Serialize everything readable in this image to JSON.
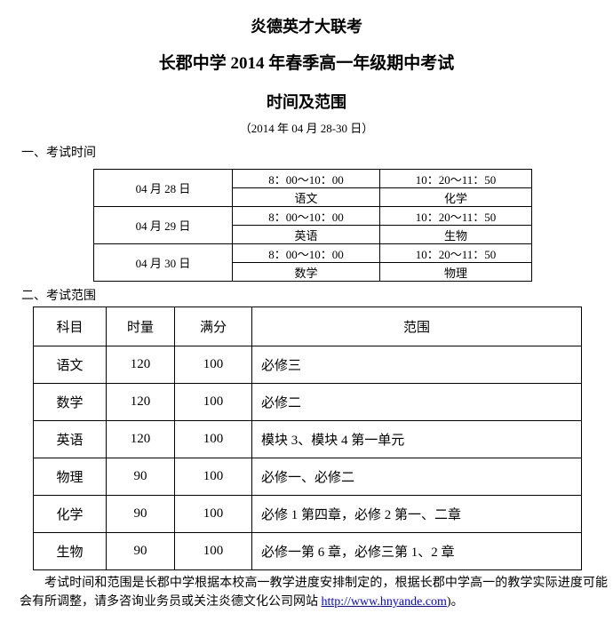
{
  "page": {
    "title_line1": "炎德英才大联考",
    "title_line2": "长郡中学 2014 年春季高一年级期中考试",
    "title_line3": "时间及范围",
    "date_range": "（2014 年 04 月 28-30 日）"
  },
  "sections": {
    "exam_time_heading": "一、考试时间",
    "exam_scope_heading": "二、考试范围"
  },
  "exam_schedule": {
    "days": [
      {
        "date": "04 月 28 日",
        "morning_time": "8：00～10：00",
        "morning_subject": "语文",
        "late_morning_time": "10：20～11：50",
        "late_morning_subject": "化学"
      },
      {
        "date": "04 月 29 日",
        "morning_time": "8：00～10：00",
        "morning_subject": "英语",
        "late_morning_time": "10：20～11：50",
        "late_morning_subject": "生物"
      },
      {
        "date": "04 月 30 日",
        "morning_time": "8：00～10：00",
        "morning_subject": "数学",
        "late_morning_time": "10：20～11：50",
        "late_morning_subject": "物理"
      }
    ]
  },
  "exam_scope": {
    "headers": [
      "科目",
      "时量",
      "满分",
      "范围"
    ],
    "rows": [
      {
        "subject": "语文",
        "duration": "120",
        "full_score": "100",
        "scope": "必修三"
      },
      {
        "subject": "数学",
        "duration": "120",
        "full_score": "100",
        "scope": "必修二"
      },
      {
        "subject": "英语",
        "duration": "120",
        "full_score": "100",
        "scope": "模块 3、模块 4 第一单元"
      },
      {
        "subject": "物理",
        "duration": "90",
        "full_score": "100",
        "scope": "必修一、必修二"
      },
      {
        "subject": "化学",
        "duration": "90",
        "full_score": "100",
        "scope": "必修 1 第四章，必修 2 第一、二章"
      },
      {
        "subject": "生物",
        "duration": "90",
        "full_score": "100",
        "scope": "必修一第 6 章，必修三第 1、2 章"
      }
    ]
  },
  "footnote": {
    "text_before_link": "考试时间和范围是长郡中学根据本校高一教学进度安排制定的，根据长郡中学高一的教学实际进度可能会有所调整，请多咨询业务员或关注炎德文化公司网站 ",
    "link_text": "http://www.hnyande.com",
    "text_after_link": ")。"
  },
  "colors": {
    "text": "#000000",
    "border": "#000000",
    "link": "#0000ff",
    "background": "#ffffff"
  }
}
